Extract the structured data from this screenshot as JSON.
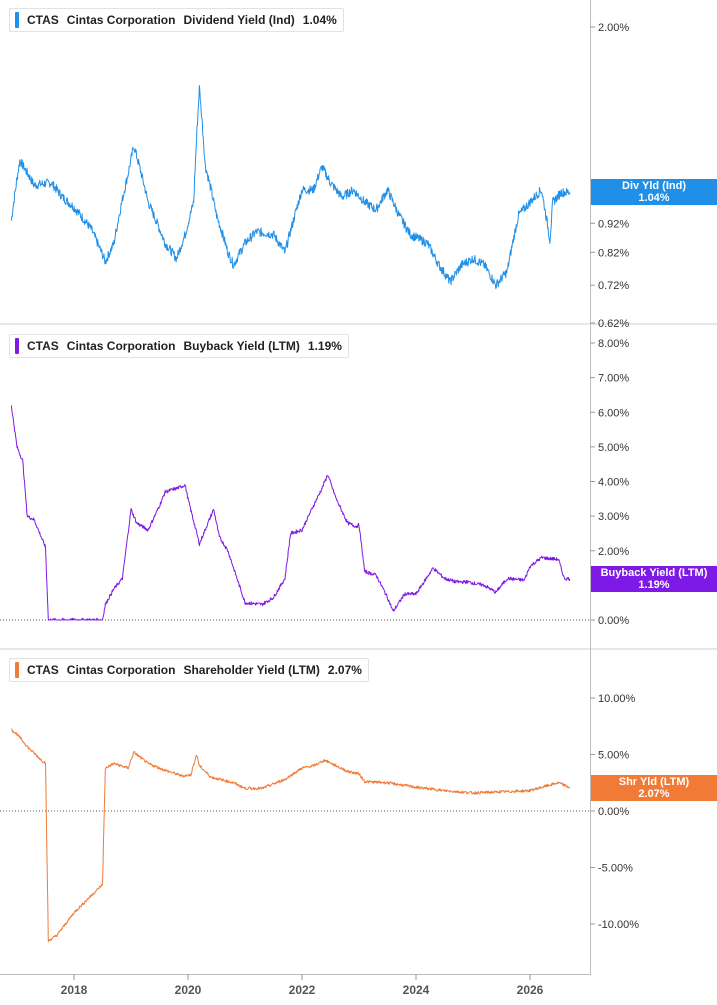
{
  "colors": {
    "div": "#1f8fe8",
    "buyback": "#7f19e6",
    "shareholder": "#f07a36"
  },
  "panels": [
    {
      "ticker": "CTAS",
      "company": "Cintas Corporation",
      "metric": "Dividend Yield (Ind)",
      "value": "1.04%",
      "badge_label": "Div Yld (Ind)",
      "badge_value": "1.04%",
      "ticks": [
        "2.00%",
        "0.92%",
        "0.82%",
        "0.72%",
        "0.62%"
      ],
      "color_key": "div"
    },
    {
      "ticker": "CTAS",
      "company": "Cintas Corporation",
      "metric": "Buyback Yield (LTM)",
      "value": "1.19%",
      "badge_label": "Buyback Yield (LTM)",
      "badge_value": "1.19%",
      "ticks": [
        "8.00%",
        "7.00%",
        "6.00%",
        "5.00%",
        "4.00%",
        "3.00%",
        "2.00%",
        "0.00%"
      ],
      "color_key": "buyback"
    },
    {
      "ticker": "CTAS",
      "company": "Cintas Corporation",
      "metric": "Shareholder Yield (LTM)",
      "value": "2.07%",
      "badge_label": "Shr Yld (LTM)",
      "badge_value": "2.07%",
      "ticks": [
        "10.00%",
        "5.00%",
        "0.00%",
        "-5.00%",
        "-10.00%"
      ],
      "color_key": "shareholder"
    }
  ],
  "x_ticks": [
    "2018",
    "2020",
    "2022",
    "2024",
    "2026"
  ],
  "chart_data": [
    {
      "type": "line",
      "title": "CTAS Cintas Corporation Dividend Yield (Ind)",
      "xlim": [
        2016.9,
        2027.3
      ],
      "ylim": [
        0.62,
        2.06
      ],
      "y_scale": "log",
      "y_ticks": [
        2.0,
        0.92,
        0.82,
        0.72,
        0.62
      ],
      "series": [
        {
          "name": "Dividend Yield (Ind)",
          "x": [
            2016.9,
            2017.05,
            2017.3,
            2017.6,
            2017.8,
            2018.0,
            2018.3,
            2018.55,
            2018.7,
            2018.95,
            2019.05,
            2019.3,
            2019.6,
            2019.8,
            2019.95,
            2020.1,
            2020.2,
            2020.3,
            2020.5,
            2020.7,
            2020.8,
            2021.0,
            2021.2,
            2021.5,
            2021.7,
            2021.85,
            2022.0,
            2022.2,
            2022.35,
            2022.5,
            2022.7,
            2022.9,
            2023.1,
            2023.3,
            2023.5,
            2023.7,
            2023.9,
            2024.2,
            2024.4,
            2024.6,
            2024.8,
            2025.0,
            2025.2,
            2025.4,
            2025.6,
            2025.8,
            2026.0,
            2026.2,
            2026.35,
            2026.4,
            2026.55,
            2026.7
          ],
          "y": [
            0.93,
            1.18,
            1.07,
            1.08,
            1.02,
            0.98,
            0.9,
            0.79,
            0.85,
            1.12,
            1.25,
            1.0,
            0.85,
            0.8,
            0.88,
            1.0,
            1.57,
            1.16,
            0.95,
            0.82,
            0.78,
            0.85,
            0.89,
            0.88,
            0.82,
            0.93,
            1.05,
            1.05,
            1.15,
            1.08,
            1.02,
            1.05,
            1.0,
            0.97,
            1.05,
            0.95,
            0.88,
            0.85,
            0.78,
            0.73,
            0.78,
            0.8,
            0.78,
            0.72,
            0.76,
            0.95,
            1.0,
            1.05,
            0.86,
            1.0,
            1.04,
            1.04
          ]
        }
      ]
    },
    {
      "type": "line",
      "title": "CTAS Cintas Corporation Buyback Yield (LTM)",
      "xlim": [
        2016.9,
        2027.3
      ],
      "ylim": [
        0,
        8
      ],
      "y_ticks": [
        8,
        7,
        6,
        5,
        4,
        3,
        2,
        0
      ],
      "series": [
        {
          "name": "Buyback Yield (LTM)",
          "x": [
            2016.9,
            2017.0,
            2017.1,
            2017.18,
            2017.3,
            2017.5,
            2017.55,
            2017.7,
            2018.0,
            2018.5,
            2018.55,
            2018.7,
            2018.85,
            2019.0,
            2019.1,
            2019.3,
            2019.5,
            2019.6,
            2019.8,
            2019.95,
            2020.0,
            2020.2,
            2020.45,
            2020.55,
            2020.7,
            2020.9,
            2021.0,
            2021.3,
            2021.5,
            2021.7,
            2021.8,
            2022.0,
            2022.2,
            2022.35,
            2022.45,
            2022.6,
            2022.8,
            2022.95,
            2023.0,
            2023.1,
            2023.3,
            2023.5,
            2023.6,
            2023.8,
            2024.0,
            2024.3,
            2024.5,
            2024.7,
            2024.9,
            2025.2,
            2025.4,
            2025.6,
            2025.9,
            2026.0,
            2026.2,
            2026.5,
            2026.6,
            2026.7
          ],
          "y": [
            6.2,
            5.0,
            4.6,
            3.0,
            2.9,
            2.1,
            0.0,
            0.0,
            0.0,
            0.0,
            0.45,
            0.9,
            1.2,
            3.2,
            2.8,
            2.6,
            3.3,
            3.7,
            3.8,
            3.9,
            3.5,
            2.2,
            3.2,
            2.4,
            2.0,
            1.0,
            0.5,
            0.45,
            0.65,
            1.2,
            2.5,
            2.6,
            3.3,
            3.8,
            4.2,
            3.5,
            2.8,
            2.7,
            2.75,
            1.4,
            1.3,
            0.65,
            0.25,
            0.75,
            0.75,
            1.5,
            1.2,
            1.1,
            1.1,
            1.0,
            0.8,
            1.2,
            1.15,
            1.55,
            1.8,
            1.75,
            1.2,
            1.19
          ]
        }
      ]
    },
    {
      "type": "line",
      "title": "CTAS Cintas Corporation Shareholder Yield (LTM)",
      "xlim": [
        2016.9,
        2027.3
      ],
      "ylim": [
        -13.7,
        13.5
      ],
      "y_ticks": [
        10,
        5,
        0,
        -5,
        -10
      ],
      "series": [
        {
          "name": "Shareholder Yield (LTM)",
          "x": [
            2016.9,
            2017.0,
            2017.2,
            2017.45,
            2017.5,
            2017.55,
            2017.7,
            2018.0,
            2018.3,
            2018.5,
            2018.55,
            2018.7,
            2018.95,
            2019.05,
            2019.3,
            2019.6,
            2019.9,
            2020.05,
            2020.15,
            2020.2,
            2020.4,
            2020.8,
            2021.0,
            2021.3,
            2021.7,
            2022.0,
            2022.2,
            2022.4,
            2022.6,
            2022.8,
            2023.0,
            2023.1,
            2023.5,
            2024.0,
            2024.5,
            2025.0,
            2025.5,
            2026.0,
            2026.2,
            2026.5,
            2026.7
          ],
          "y": [
            7.2,
            6.8,
            5.6,
            4.4,
            4.3,
            -11.5,
            -11.0,
            -9.0,
            -7.5,
            -6.5,
            3.8,
            4.2,
            3.8,
            5.2,
            4.2,
            3.6,
            3.1,
            3.2,
            5.0,
            4.0,
            3.0,
            2.5,
            2.0,
            2.0,
            2.8,
            3.8,
            4.0,
            4.5,
            4.0,
            3.5,
            3.3,
            2.6,
            2.5,
            2.1,
            1.8,
            1.6,
            1.7,
            1.8,
            2.1,
            2.5,
            2.07
          ]
        }
      ]
    }
  ]
}
